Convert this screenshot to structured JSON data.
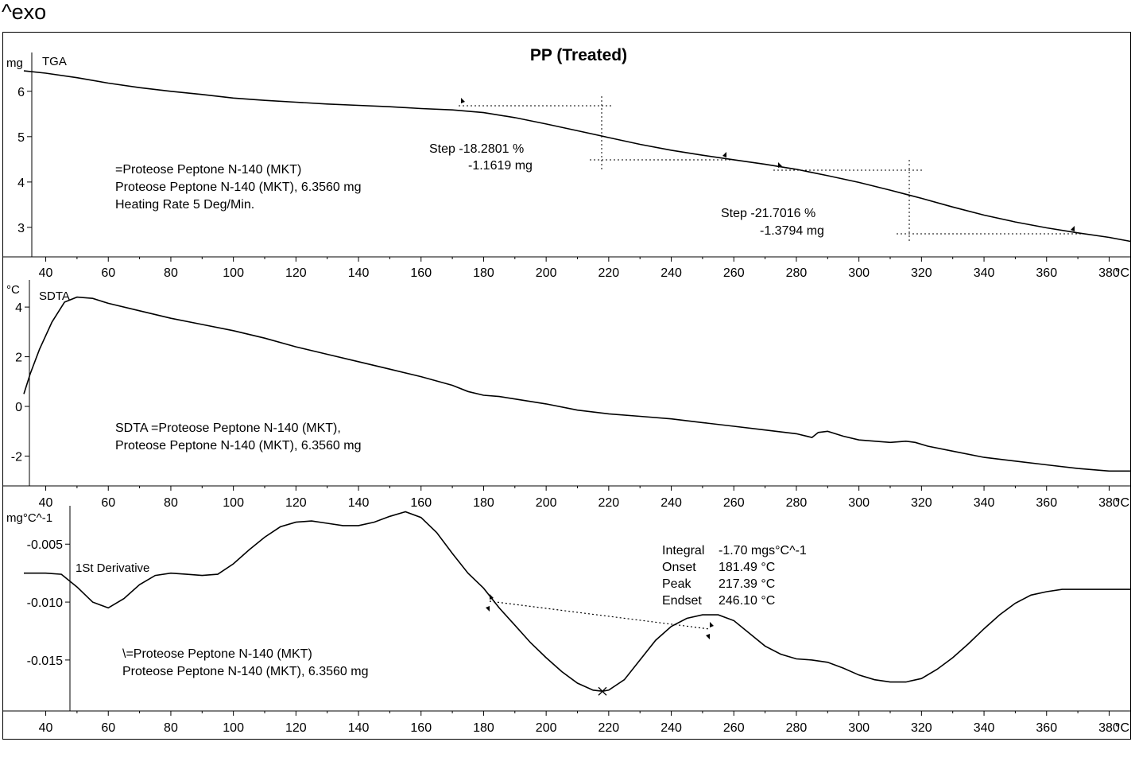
{
  "exo_label": "^exo",
  "chart_data": [
    {
      "type": "line",
      "title": "PP (Treated)",
      "series": [
        {
          "name": "TGA",
          "x": [
            33,
            40,
            50,
            60,
            70,
            80,
            90,
            100,
            110,
            120,
            130,
            140,
            150,
            160,
            170,
            180,
            190,
            200,
            210,
            220,
            230,
            240,
            250,
            260,
            270,
            280,
            290,
            300,
            310,
            320,
            330,
            340,
            350,
            360,
            370,
            380,
            387
          ],
          "y": [
            6.45,
            6.4,
            6.3,
            6.18,
            6.08,
            6.0,
            5.93,
            5.85,
            5.8,
            5.76,
            5.72,
            5.69,
            5.66,
            5.62,
            5.59,
            5.53,
            5.42,
            5.28,
            5.13,
            4.98,
            4.83,
            4.7,
            4.59,
            4.49,
            4.39,
            4.28,
            4.14,
            3.99,
            3.82,
            3.64,
            3.45,
            3.27,
            3.12,
            2.99,
            2.88,
            2.78,
            2.69
          ]
        }
      ],
      "ylabel": "mg",
      "ylim": [
        2.35,
        6.75
      ],
      "yticks": [
        3,
        4,
        5,
        6
      ],
      "xlim": [
        33,
        387
      ],
      "xticks": [
        40,
        60,
        80,
        100,
        120,
        140,
        160,
        180,
        200,
        220,
        240,
        260,
        280,
        300,
        320,
        340,
        360,
        380
      ],
      "x_unit_label": "°C",
      "annotations": {
        "step1": {
          "line1": "Step   -18.2801 %",
          "line2": "-1.1619 mg"
        },
        "step2": {
          "line1": "Step   -21.7016 %",
          "line2": "-1.3794 mg"
        },
        "info": [
          "=Proteose Peptone N-140 (MKT)",
          "Proteose Peptone N-140 (MKT), 6.3560 mg",
          "Heating Rate 5 Deg/Min."
        ]
      }
    },
    {
      "type": "line",
      "series": [
        {
          "name": "SDTA",
          "x": [
            33,
            35,
            38,
            42,
            46,
            50,
            55,
            60,
            70,
            80,
            90,
            100,
            110,
            120,
            130,
            140,
            150,
            160,
            170,
            175,
            180,
            185,
            190,
            200,
            210,
            220,
            230,
            240,
            250,
            260,
            270,
            280,
            285,
            287,
            290,
            295,
            300,
            310,
            315,
            318,
            322,
            330,
            340,
            350,
            360,
            370,
            380,
            387
          ],
          "y": [
            0.5,
            1.3,
            2.3,
            3.4,
            4.2,
            4.4,
            4.35,
            4.15,
            3.85,
            3.55,
            3.3,
            3.05,
            2.75,
            2.4,
            2.1,
            1.8,
            1.5,
            1.2,
            0.85,
            0.6,
            0.45,
            0.4,
            0.3,
            0.1,
            -0.15,
            -0.3,
            -0.4,
            -0.5,
            -0.65,
            -0.8,
            -0.95,
            -1.1,
            -1.25,
            -1.05,
            -1.0,
            -1.2,
            -1.35,
            -1.45,
            -1.4,
            -1.45,
            -1.6,
            -1.8,
            -2.05,
            -2.2,
            -2.35,
            -2.5,
            -2.6,
            -2.6
          ]
        }
      ],
      "ylabel": "°C",
      "ylim": [
        -3.2,
        4.9
      ],
      "yticks": [
        -2,
        0,
        2,
        4
      ],
      "xlim": [
        33,
        387
      ],
      "xticks": [
        40,
        60,
        80,
        100,
        120,
        140,
        160,
        180,
        200,
        220,
        240,
        260,
        280,
        300,
        320,
        340,
        360,
        380
      ],
      "x_unit_label": "°C",
      "annotations": {
        "info": [
          "SDTA =Proteose Peptone N-140 (MKT),",
          "Proteose Peptone N-140 (MKT), 6.3560 mg"
        ]
      }
    },
    {
      "type": "line",
      "series": [
        {
          "name": "1St Derivative",
          "x": [
            33,
            40,
            45,
            50,
            55,
            60,
            65,
            70,
            75,
            80,
            85,
            90,
            95,
            100,
            105,
            110,
            115,
            120,
            125,
            130,
            135,
            140,
            145,
            150,
            155,
            160,
            165,
            170,
            175,
            180,
            185,
            190,
            195,
            200,
            205,
            210,
            215,
            218,
            220,
            225,
            230,
            235,
            240,
            245,
            250,
            255,
            260,
            265,
            270,
            275,
            280,
            285,
            290,
            295,
            300,
            305,
            310,
            315,
            320,
            325,
            330,
            335,
            340,
            345,
            350,
            355,
            360,
            365,
            370,
            375,
            380,
            387
          ],
          "y": [
            -0.0075,
            -0.0075,
            -0.0076,
            -0.0087,
            -0.01,
            -0.0105,
            -0.0097,
            -0.0085,
            -0.0077,
            -0.0075,
            -0.0076,
            -0.0077,
            -0.0076,
            -0.0067,
            -0.0055,
            -0.0044,
            -0.0035,
            -0.0031,
            -0.003,
            -0.0032,
            -0.0034,
            -0.0034,
            -0.0031,
            -0.0026,
            -0.0022,
            -0.0027,
            -0.004,
            -0.0058,
            -0.0075,
            -0.0088,
            -0.0105,
            -0.012,
            -0.0135,
            -0.0148,
            -0.016,
            -0.017,
            -0.0176,
            -0.0177,
            -0.0176,
            -0.0167,
            -0.015,
            -0.0133,
            -0.0121,
            -0.0114,
            -0.0111,
            -0.0111,
            -0.0116,
            -0.0127,
            -0.0138,
            -0.0145,
            -0.0149,
            -0.015,
            -0.0152,
            -0.0157,
            -0.0163,
            -0.0167,
            -0.0169,
            -0.0169,
            -0.0166,
            -0.0158,
            -0.0148,
            -0.0136,
            -0.0123,
            -0.0111,
            -0.0101,
            -0.0094,
            -0.0091,
            -0.0089,
            -0.0089,
            -0.0089,
            -0.0089,
            -0.0089
          ]
        }
      ],
      "ylabel": "mg°C^-1",
      "ylim": [
        -0.0194,
        -0.0021
      ],
      "yticks": [
        -0.015,
        -0.01,
        -0.005
      ],
      "ytick_labels": [
        "-0.015",
        "-0.010",
        "-0.005"
      ],
      "xlim": [
        33,
        387
      ],
      "xticks": [
        40,
        60,
        80,
        100,
        120,
        140,
        160,
        180,
        200,
        220,
        240,
        260,
        280,
        300,
        320,
        340,
        360,
        380
      ],
      "x_unit_label": "°C",
      "annotations": {
        "integral": [
          {
            "label": "Integral",
            "value": "-1.70 mgs°C^-1"
          },
          {
            "label": "Onset",
            "value": "181.49 °C"
          },
          {
            "label": "Peak",
            "value": "217.39 °C"
          },
          {
            "label": "Endset",
            "value": "246.10 °C"
          }
        ],
        "info": [
          "\\=Proteose Peptone N-140 (MKT)",
          "Proteose Peptone N-140 (MKT), 6.3560 mg"
        ]
      }
    }
  ]
}
